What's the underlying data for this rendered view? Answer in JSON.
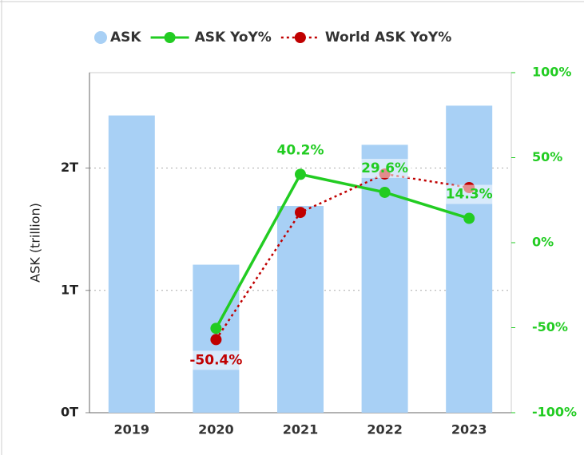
{
  "chart_data": {
    "type": "bar-line",
    "categories": [
      "2019",
      "2020",
      "2021",
      "2022",
      "2023"
    ],
    "y_label": "ASK (trillion)",
    "ylim": [
      0,
      2.78
    ],
    "yticks": [
      {
        "value": 0,
        "label": "0T"
      },
      {
        "value": 1,
        "label": "1T"
      },
      {
        "value": 2,
        "label": "2T"
      }
    ],
    "y2lim": [
      -100,
      100
    ],
    "y2ticks": [
      {
        "value": -100,
        "label": "-100%"
      },
      {
        "value": -50,
        "label": "-50%"
      },
      {
        "value": 0,
        "label": "0%"
      },
      {
        "value": 50,
        "label": "50%"
      },
      {
        "value": 100,
        "label": "100%"
      }
    ],
    "grid": true,
    "legend": "top",
    "series": [
      {
        "name": "ASK",
        "type": "bar",
        "color": "#a8d0f5",
        "values": [
          2.43,
          1.21,
          1.69,
          2.19,
          2.51
        ]
      },
      {
        "name": "ASK YoY%",
        "type": "line",
        "axis": "y2",
        "color": "#22cc22",
        "values": [
          null,
          -50.4,
          40.2,
          29.6,
          14.3
        ],
        "value_labels": [
          null,
          "-50.4%",
          "40.2%",
          "29.6%",
          "14.3%"
        ],
        "value_label_colors": [
          null,
          "#c00000",
          "#22cc22",
          "#22cc22",
          "#22cc22"
        ]
      },
      {
        "name": "World ASK YoY%",
        "type": "line",
        "axis": "y2",
        "dashed": true,
        "color": "#c00000",
        "values": [
          null,
          -57,
          17.8,
          40.4,
          32.4
        ]
      }
    ]
  }
}
